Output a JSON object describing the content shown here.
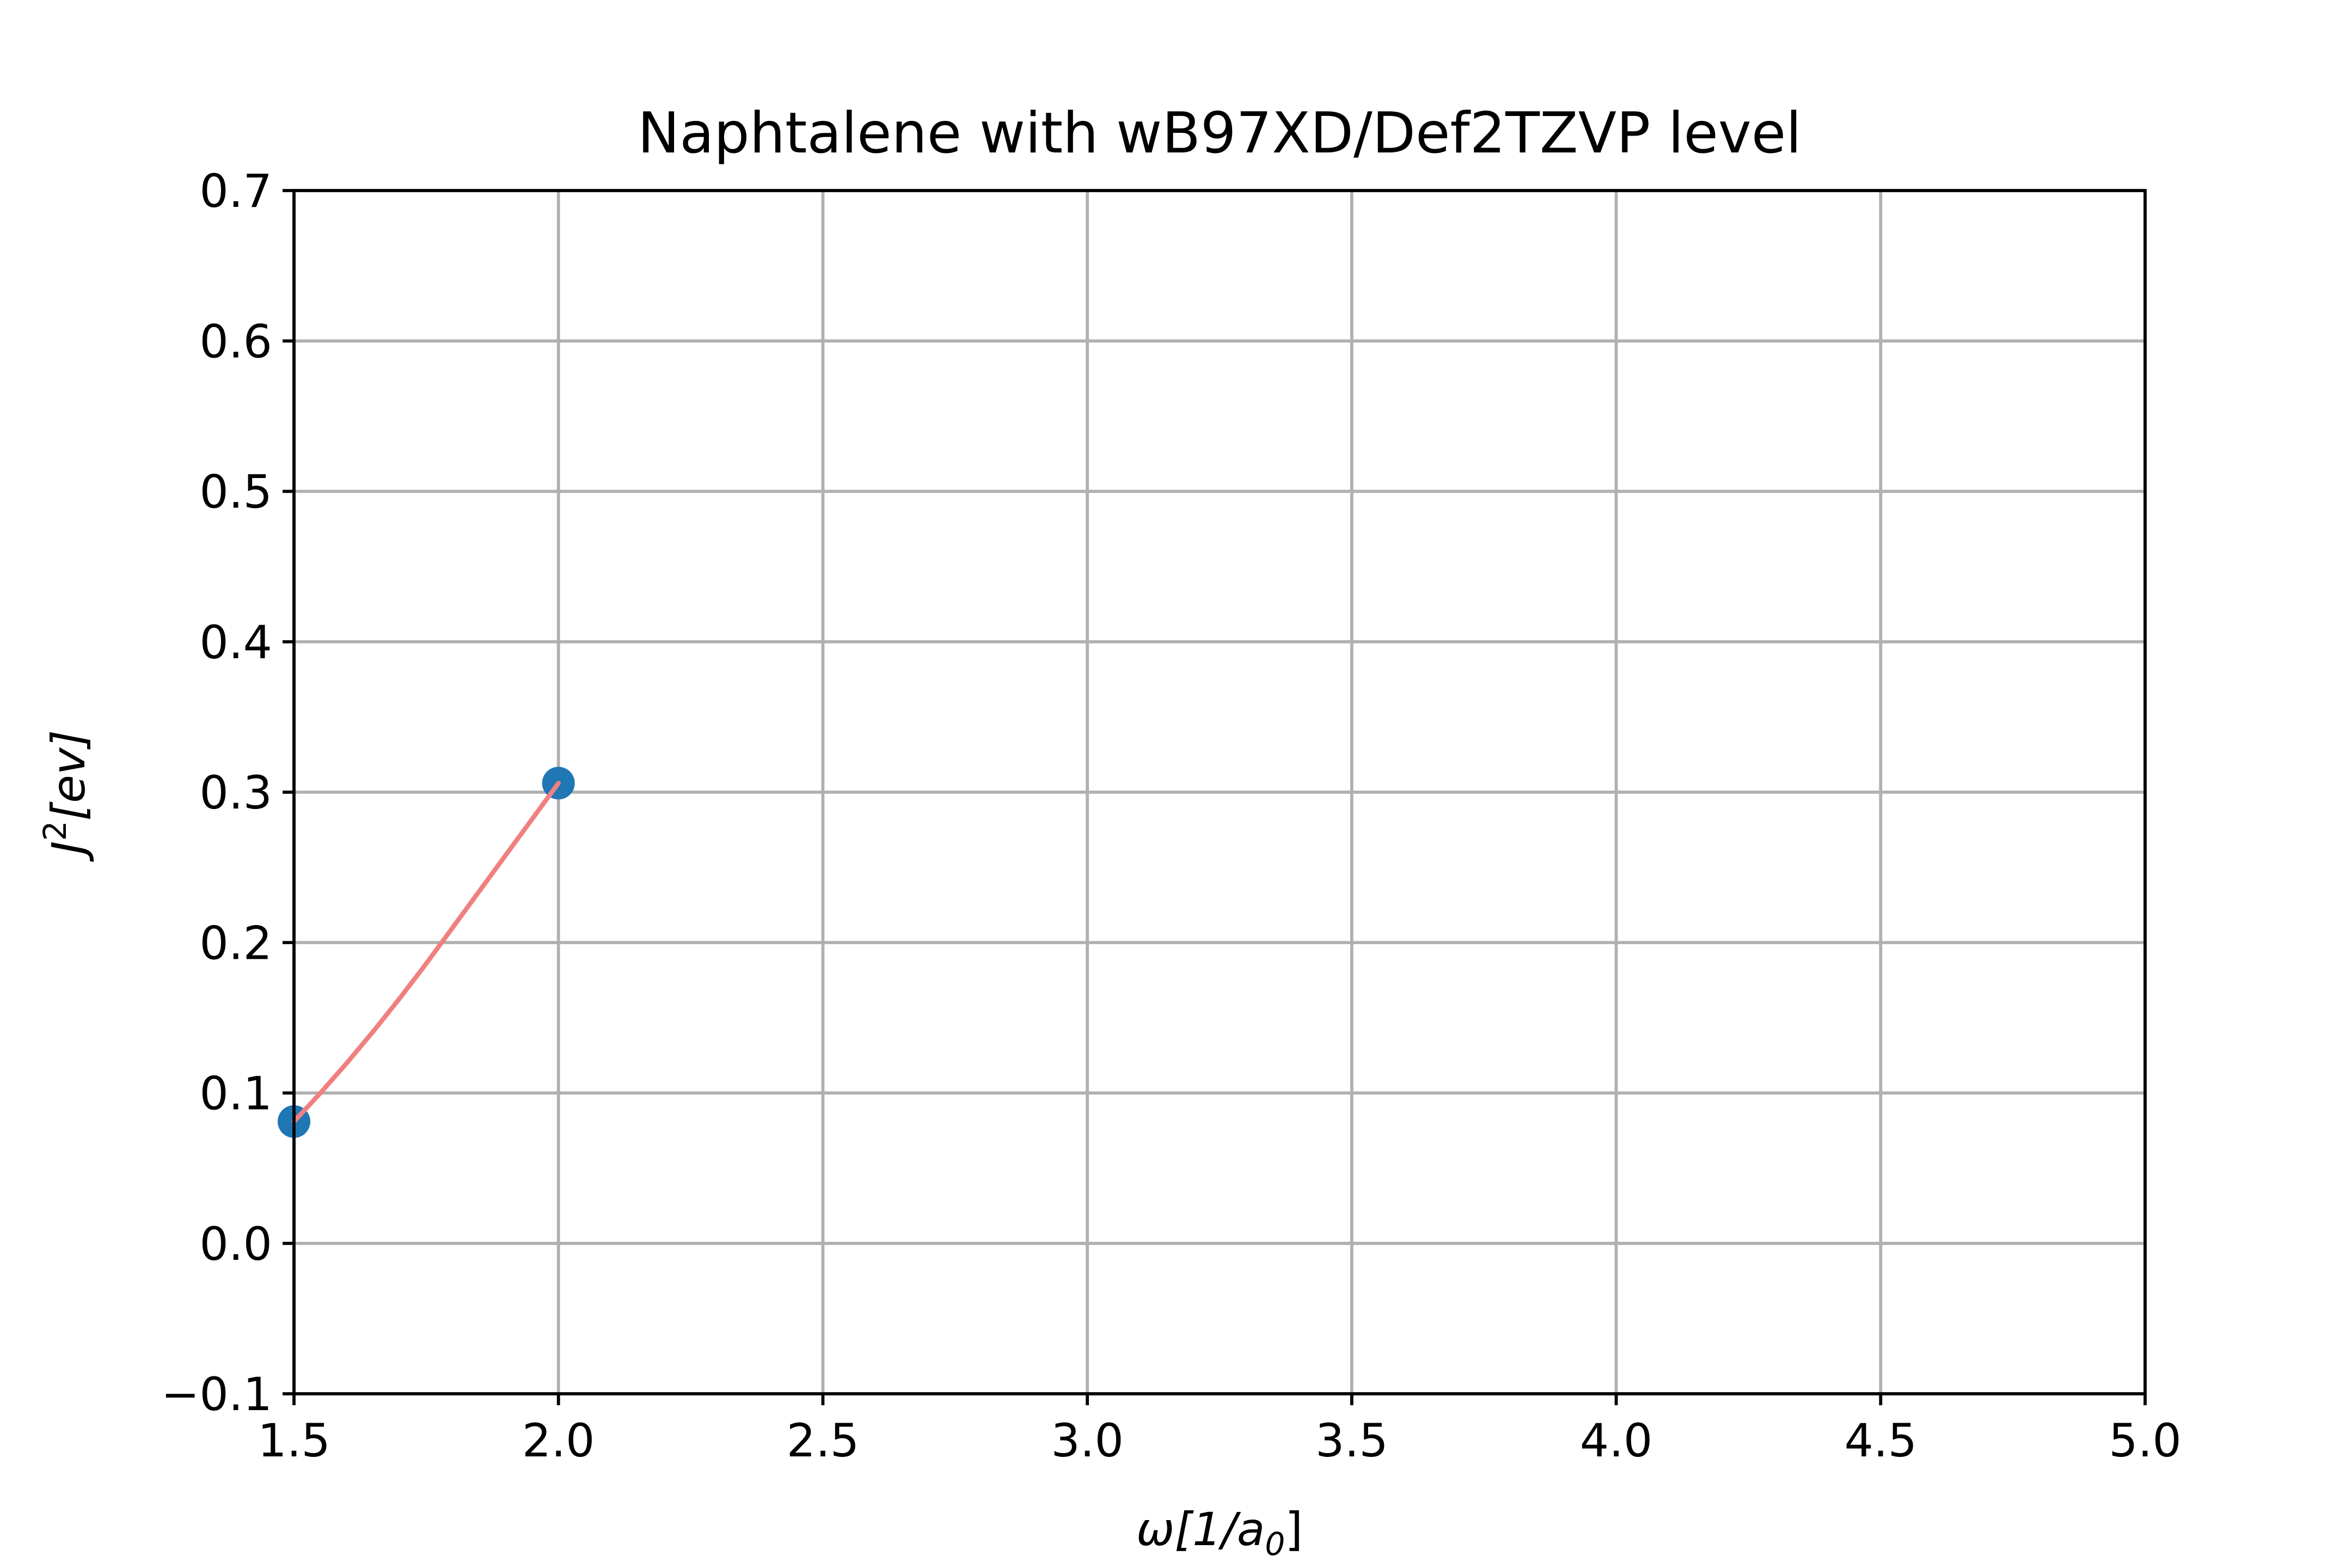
{
  "chart_data": {
    "type": "scatter",
    "title": "Naphtalene with wB97XD/Def2TZVP level",
    "xlabel": {
      "main": "ω[1/a",
      "sub": "0",
      "tail": "]"
    },
    "ylabel": {
      "main": "J",
      "sup": "2",
      "tail": "[ev]"
    },
    "xlim": [
      1.5,
      5.0
    ],
    "ylim": [
      -0.1,
      0.7
    ],
    "xticks": [
      1.5,
      2.0,
      2.5,
      3.0,
      3.5,
      4.0,
      4.5,
      5.0
    ],
    "xtick_labels": [
      "1.5",
      "2.0",
      "2.5",
      "3.0",
      "3.5",
      "4.0",
      "4.5",
      "5.0"
    ],
    "yticks": [
      -0.1,
      0.0,
      0.1,
      0.2,
      0.3,
      0.4,
      0.5,
      0.6,
      0.7
    ],
    "ytick_labels": [
      "−0.1",
      "0.0",
      "0.1",
      "0.2",
      "0.3",
      "0.4",
      "0.5",
      "0.6",
      "0.7"
    ],
    "grid": true,
    "series": [
      {
        "kind": "scatter",
        "color": "#1f77b4",
        "x": [
          1.5,
          2.0
        ],
        "y": [
          0.081,
          0.306
        ]
      },
      {
        "kind": "fit-curve",
        "color": "#f08080",
        "x": [
          1.5,
          1.55,
          1.6,
          1.65,
          1.7,
          1.75,
          1.8,
          1.85,
          1.9,
          1.95,
          2.0
        ],
        "y": [
          0.081,
          0.1,
          0.12,
          0.141,
          0.163,
          0.186,
          0.21,
          0.234,
          0.258,
          0.282,
          0.306
        ]
      }
    ]
  }
}
